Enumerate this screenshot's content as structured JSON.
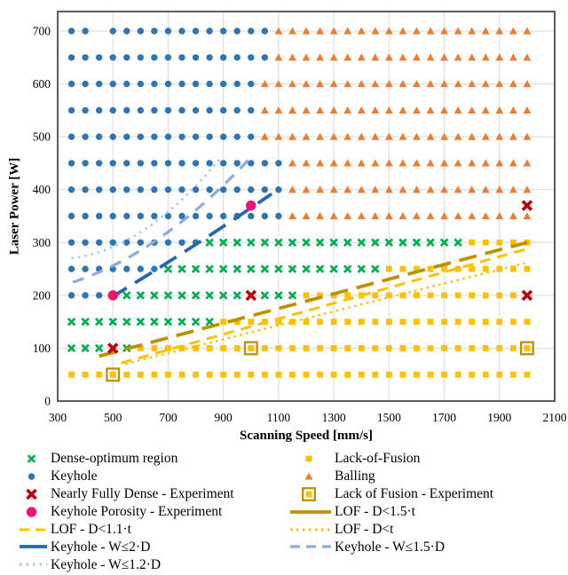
{
  "chart_data": {
    "type": "scatter",
    "title": "",
    "axes": {
      "x": {
        "title": "Scanning Speed [mm/s]",
        "min": 300,
        "max": 2100,
        "ticks": [
          300,
          500,
          700,
          900,
          1100,
          1300,
          1500,
          1700,
          1900,
          2100
        ]
      },
      "y": {
        "title": "Laser Power [W]",
        "min": 0,
        "max": 700,
        "ticks": [
          0,
          100,
          200,
          300,
          400,
          500,
          600,
          700
        ]
      }
    },
    "grid": "on",
    "x_step": 50,
    "regions": [
      {
        "power": 700,
        "series": [
          {
            "type": "keyhole",
            "from": 350,
            "to": 1050,
            "skip": [
              450
            ]
          },
          {
            "type": "balling",
            "from": 1100,
            "to": 2000
          }
        ]
      },
      {
        "power": 650,
        "series": [
          {
            "type": "keyhole",
            "from": 350,
            "to": 1050
          },
          {
            "type": "balling",
            "from": 1100,
            "to": 2000
          }
        ]
      },
      {
        "power": 600,
        "series": [
          {
            "type": "keyhole",
            "from": 350,
            "to": 1000
          },
          {
            "type": "balling",
            "from": 1050,
            "to": 2000
          }
        ]
      },
      {
        "power": 550,
        "series": [
          {
            "type": "keyhole",
            "from": 350,
            "to": 1000
          },
          {
            "type": "balling",
            "from": 1050,
            "to": 2000
          }
        ]
      },
      {
        "power": 500,
        "series": [
          {
            "type": "keyhole",
            "from": 350,
            "to": 1000
          },
          {
            "type": "balling",
            "from": 1050,
            "to": 2000
          }
        ]
      },
      {
        "power": 450,
        "series": [
          {
            "type": "keyhole",
            "from": 350,
            "to": 1100
          },
          {
            "type": "balling",
            "from": 1150,
            "to": 2000
          }
        ]
      },
      {
        "power": 400,
        "series": [
          {
            "type": "keyhole",
            "from": 350,
            "to": 1100
          },
          {
            "type": "balling",
            "from": 1150,
            "to": 2000
          }
        ]
      },
      {
        "power": 350,
        "series": [
          {
            "type": "keyhole",
            "from": 350,
            "to": 1100
          },
          {
            "type": "balling",
            "from": 1150,
            "to": 2000
          }
        ]
      },
      {
        "power": 300,
        "series": [
          {
            "type": "keyhole",
            "from": 350,
            "to": 800
          },
          {
            "type": "dense",
            "from": 850,
            "to": 1750
          },
          {
            "type": "lof",
            "from": 1800,
            "to": 2000
          }
        ]
      },
      {
        "power": 250,
        "series": [
          {
            "type": "keyhole",
            "from": 350,
            "to": 650
          },
          {
            "type": "dense",
            "from": 700,
            "to": 1450
          },
          {
            "type": "lof",
            "from": 1500,
            "to": 2000
          }
        ]
      },
      {
        "power": 200,
        "series": [
          {
            "type": "keyhole",
            "from": 350,
            "to": 450
          },
          {
            "type": "dense",
            "from": 550,
            "to": 1150,
            "skip": [
              1000
            ]
          },
          {
            "type": "lof",
            "from": 1200,
            "to": 1950
          }
        ]
      },
      {
        "power": 150,
        "series": [
          {
            "type": "dense",
            "from": 350,
            "to": 850
          },
          {
            "type": "lof",
            "from": 900,
            "to": 2000
          }
        ]
      },
      {
        "power": 100,
        "series": [
          {
            "type": "dense",
            "from": 350,
            "to": 550,
            "skip": [
              500
            ]
          },
          {
            "type": "lof",
            "from": 600,
            "to": 2000
          }
        ]
      },
      {
        "power": 50,
        "series": [
          {
            "type": "lof",
            "from": 350,
            "to": 2000
          }
        ]
      }
    ],
    "experiments": [
      {
        "type": "nearly_fully_dense",
        "label": "Nearly Fully Dense - Experiment",
        "points": [
          [
            500,
            100
          ],
          [
            1000,
            200
          ],
          [
            2000,
            200
          ],
          [
            2000,
            370
          ]
        ]
      },
      {
        "type": "keyhole_porosity",
        "label": "Keyhole Porosity - Experiment",
        "points": [
          [
            500,
            200
          ],
          [
            1000,
            370
          ]
        ]
      },
      {
        "type": "lack_of_fusion_exp",
        "label": "Lack of Fusion - Experiment",
        "points": [
          [
            500,
            50
          ],
          [
            1000,
            100
          ],
          [
            2000,
            100
          ]
        ]
      }
    ],
    "boundary_lines": [
      {
        "id": "lof_d_lt_t",
        "label": "LOF - D<t",
        "pts": [
          [
            545,
            70
          ],
          [
            2000,
            262
          ]
        ],
        "color": "#FFC000",
        "width": 2.4,
        "dash": "2.5 4.5"
      },
      {
        "id": "lof_d_lt_11t",
        "label": "LOF - D<1.1·t",
        "pts": [
          [
            530,
            72
          ],
          [
            2000,
            288
          ]
        ],
        "color": "#FFC000",
        "width": 3.0,
        "dash": "12 8"
      },
      {
        "id": "lof_d_lt_15t",
        "label": "LOF - D<1.5·t",
        "pts": [
          [
            450,
            85
          ],
          [
            2000,
            300
          ]
        ],
        "color": "#BF9000",
        "width": 3.8,
        "dash": "20 10"
      },
      {
        "id": "kh_w_le_12d",
        "label": "Keyhole - W≤1.2·D",
        "pts": [
          [
            350,
            270
          ],
          [
            620,
            288
          ],
          [
            890,
            460
          ]
        ],
        "color": "#A9C7E8",
        "width": 2.6,
        "dash": "2.5 5"
      },
      {
        "id": "kh_w_le_15d",
        "label": "Keyhole - W≤1.5·D",
        "pts": [
          [
            355,
            225
          ],
          [
            680,
            280
          ],
          [
            1010,
            467
          ]
        ],
        "color": "#8FAADC",
        "width": 3.2,
        "dash": "13 10"
      },
      {
        "id": "kh_w_le_2d",
        "label": "Keyhole - W≤2·D",
        "pts": [
          [
            490,
            195
          ],
          [
            770,
            283
          ],
          [
            1075,
            392
          ]
        ],
        "color": "#2368B0",
        "width": 3.8,
        "dash": "22 11"
      }
    ]
  },
  "legend": {
    "left": [
      {
        "label": "Dense-optimum region",
        "marker": "dense"
      },
      {
        "label": "Keyhole",
        "marker": "keyhole"
      },
      {
        "label": "Nearly Fully Dense - Experiment",
        "marker": "nearly_fully_dense"
      },
      {
        "label": "Keyhole Porosity - Experiment",
        "marker": "keyhole_porosity"
      },
      {
        "label": "LOF - D<1.1·t",
        "marker": "line",
        "line": "lof_d_lt_11t"
      },
      {
        "label": "Keyhole - W≤2·D",
        "marker": "line",
        "line": "kh_w_le_2d"
      },
      {
        "label": "Keyhole - W≤1.2·D",
        "marker": "line",
        "line": "kh_w_le_12d"
      }
    ],
    "right": [
      {
        "label": "Lack-of-Fusion",
        "marker": "lof"
      },
      {
        "label": "Balling",
        "marker": "balling"
      },
      {
        "label": "Lack of Fusion - Experiment",
        "marker": "lack_of_fusion_exp"
      },
      {
        "label": "LOF - D<1.5·t",
        "marker": "line",
        "line": "lof_d_lt_15t"
      },
      {
        "label": "LOF - D<t",
        "marker": "line",
        "line": "lof_d_lt_t"
      },
      {
        "label": "Keyhole - W≤1.5·D",
        "marker": "line",
        "line": "kh_w_le_15d"
      }
    ]
  },
  "colors": {
    "keyhole": "#2E75B6",
    "dense": "#00B050",
    "lof": "#FFC000",
    "balling": "#ED7D31",
    "nearly_fully_dense": "#C00000",
    "keyhole_porosity": "#EE1470",
    "lof_exp_ring": "#BF9000",
    "grid": "#D9D9D9",
    "border": "#404040",
    "text": "#000000"
  }
}
